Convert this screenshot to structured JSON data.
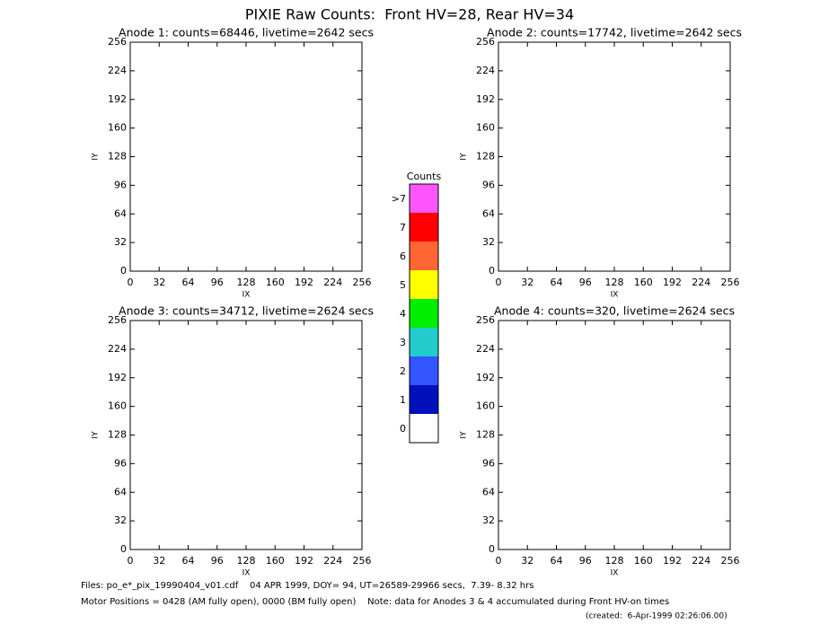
{
  "title": "PIXIE Raw Counts:  Front HV=28, Rear HV=34",
  "chart_data": [
    {
      "type": "heatmap",
      "title": "Anode 1: counts=68446, livetime=2642 secs",
      "xlabel": "IX",
      "ylabel": "IY",
      "xlim": [
        0,
        256
      ],
      "ylim": [
        0,
        256
      ],
      "xticks": [
        0,
        32,
        64,
        96,
        128,
        160,
        192,
        224,
        256
      ],
      "yticks": [
        0,
        32,
        64,
        96,
        128,
        160,
        192,
        224,
        256
      ]
    },
    {
      "type": "heatmap",
      "title": "Anode 2: counts=17742, livetime=2642 secs",
      "xlabel": "IX",
      "ylabel": "IY",
      "xlim": [
        0,
        256
      ],
      "ylim": [
        0,
        256
      ],
      "xticks": [
        0,
        32,
        64,
        96,
        128,
        160,
        192,
        224,
        256
      ],
      "yticks": [
        0,
        32,
        64,
        96,
        128,
        160,
        192,
        224,
        256
      ]
    },
    {
      "type": "heatmap",
      "title": "Anode 3: counts=34712, livetime=2624 secs",
      "xlabel": "IX",
      "ylabel": "IY",
      "xlim": [
        0,
        256
      ],
      "ylim": [
        0,
        256
      ],
      "xticks": [
        0,
        32,
        64,
        96,
        128,
        160,
        192,
        224,
        256
      ],
      "yticks": [
        0,
        32,
        64,
        96,
        128,
        160,
        192,
        224,
        256
      ]
    },
    {
      "type": "heatmap",
      "title": "Anode 4: counts=320, livetime=2624 secs",
      "xlabel": "IX",
      "ylabel": "IY",
      "xlim": [
        0,
        256
      ],
      "ylim": [
        0,
        256
      ],
      "xticks": [
        0,
        32,
        64,
        96,
        128,
        160,
        192,
        224,
        256
      ],
      "yticks": [
        0,
        32,
        64,
        96,
        128,
        160,
        192,
        224,
        256
      ]
    }
  ],
  "colorbar": {
    "title": "Counts",
    "levels": [
      {
        "label": ">7",
        "color": "#ff55ff"
      },
      {
        "label": "7",
        "color": "#ff0000"
      },
      {
        "label": "6",
        "color": "#ff6633"
      },
      {
        "label": "5",
        "color": "#ffff00"
      },
      {
        "label": "4",
        "color": "#00ee00"
      },
      {
        "label": "3",
        "color": "#22cccc"
      },
      {
        "label": "2",
        "color": "#3355ff"
      },
      {
        "label": "1",
        "color": "#0011bb"
      },
      {
        "label": "0",
        "color": "#ffffff"
      }
    ]
  },
  "footer": {
    "files": "Files: po_e*_pix_19990404_v01.cdf    04 APR 1999, DOY= 94, UT=26589-29966 secs,  7.39- 8.32 hrs",
    "motor": "Motor Positions = 0428 (AM fully open), 0000 (BM fully open)    Note: data for Anodes 3 & 4 accumulated during Front HV-on times",
    "created": "(created:  6-Apr-1999 02:26:06.00)"
  }
}
